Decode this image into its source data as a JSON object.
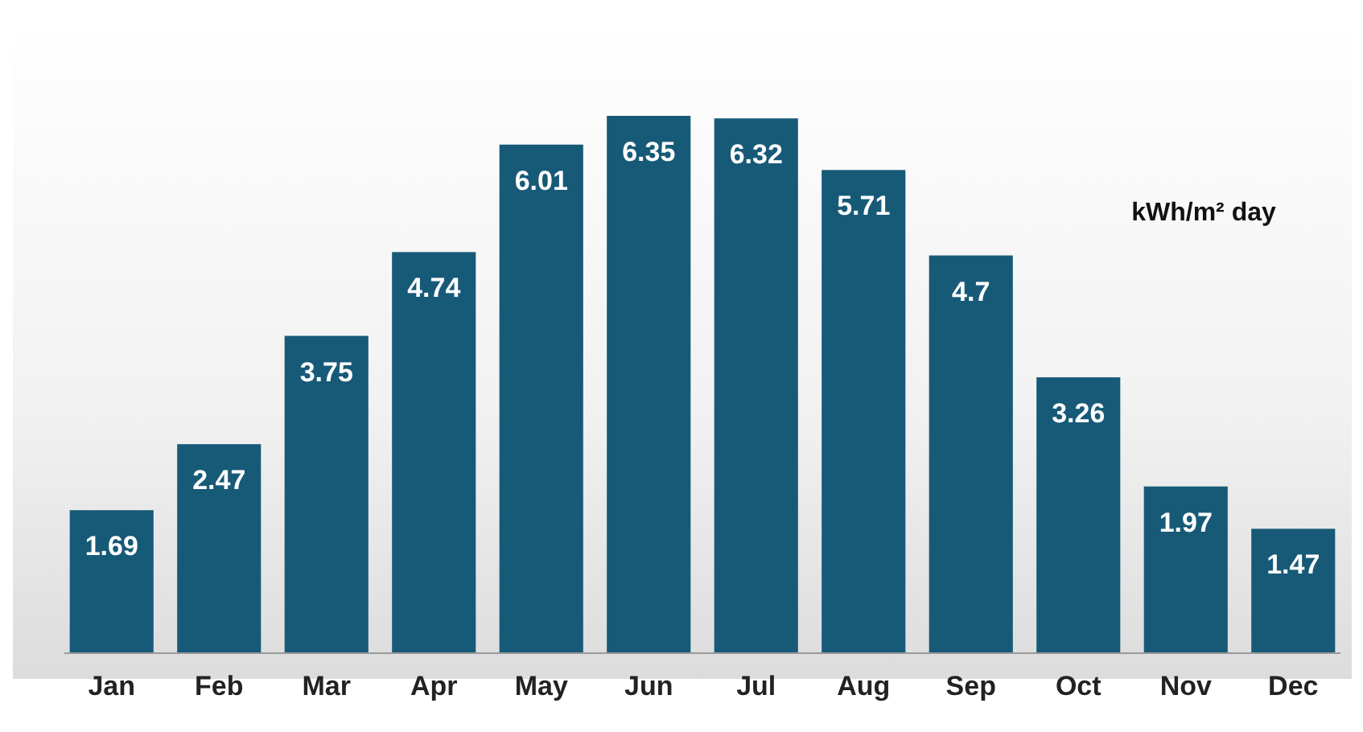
{
  "chart_data": {
    "type": "bar",
    "categories": [
      "Jan",
      "Feb",
      "Mar",
      "Apr",
      "May",
      "Jun",
      "Jul",
      "Aug",
      "Sep",
      "Oct",
      "Nov",
      "Dec"
    ],
    "values": [
      1.69,
      2.47,
      3.75,
      4.74,
      6.01,
      6.35,
      6.32,
      5.71,
      4.7,
      3.26,
      1.97,
      1.47
    ],
    "color": "#175a78",
    "data_labels": true,
    "annotations": [
      "kWh/m² day"
    ]
  }
}
